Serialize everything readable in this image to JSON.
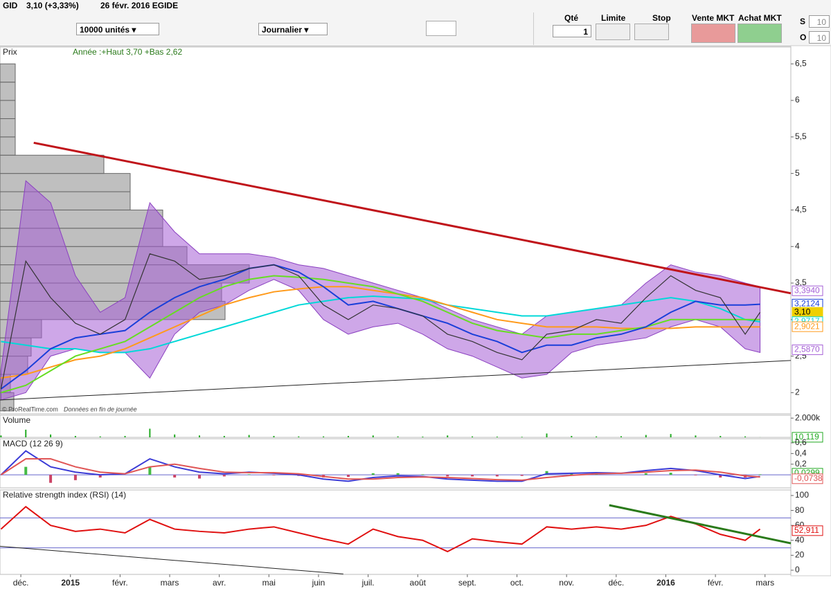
{
  "toolbar": {
    "symbol": "GID",
    "price": "3,10 (+3,33%)",
    "date": "26 févr. 2016 EGIDE",
    "units": "10000 unités",
    "period": "Journalier",
    "qty_label": "Qté",
    "qty": "1",
    "limit_label": "Limite",
    "stop_label": "Stop",
    "sell_label": "Vente MKT",
    "buy_label": "Achat MKT",
    "s_label": "S",
    "s_value": "10",
    "o_label": "O",
    "o_value": "10"
  },
  "x_axis": {
    "xlim": [
      -0.42,
      15.52
    ],
    "xticks": [
      {
        "value": 0,
        "label": "déc."
      },
      {
        "value": 1,
        "label": "2015"
      },
      {
        "value": 2,
        "label": "févr."
      },
      {
        "value": 3,
        "label": "mars"
      },
      {
        "value": 4,
        "label": "avr."
      },
      {
        "value": 5,
        "label": "mai"
      },
      {
        "value": 6,
        "label": "juin"
      },
      {
        "value": 7,
        "label": "juil."
      },
      {
        "value": 8,
        "label": "août"
      },
      {
        "value": 9,
        "label": "sept."
      },
      {
        "value": 10,
        "label": "oct."
      },
      {
        "value": 11,
        "label": "nov."
      },
      {
        "value": 12,
        "label": "déc."
      },
      {
        "value": 13,
        "label": "2016"
      },
      {
        "value": 14,
        "label": "févr."
      },
      {
        "value": 15,
        "label": "mars"
      }
    ],
    "x": [
      -0.4,
      0.1,
      0.6,
      1.1,
      1.6,
      2.1,
      2.6,
      3.1,
      3.6,
      4.1,
      4.6,
      5.1,
      5.6,
      6.1,
      6.6,
      7.1,
      7.6,
      8.1,
      8.6,
      9.1,
      9.6,
      10.1,
      10.6,
      11.1,
      11.6,
      12.1,
      12.6,
      13.1,
      13.6,
      14.1,
      14.6,
      14.9
    ]
  },
  "chart_data": [
    {
      "type": "line",
      "title": "Prix",
      "annotation": "Année :+Haut 3,70 +Bas 2,62",
      "credit": "© ProRealTime.com",
      "credit_note": "Données en fin de journée",
      "ylim": [
        1.71,
        6.73
      ],
      "yticks": [
        2,
        {
          "value": 2.5,
          "label": "2,5"
        },
        3,
        {
          "value": 3.5,
          "label": "3,5"
        },
        4,
        {
          "value": 4.5,
          "label": "4,5"
        },
        5,
        {
          "value": 5.5,
          "label": "5,5"
        },
        6,
        {
          "value": 6.5,
          "label": "6,5"
        }
      ],
      "band": {
        "color": "#a55fd6",
        "upper": [
          2.3,
          4.9,
          4.6,
          3.6,
          3.1,
          3.3,
          4.6,
          4.2,
          3.9,
          3.9,
          3.9,
          3.85,
          3.75,
          3.7,
          3.6,
          3.5,
          3.4,
          3.3,
          3.15,
          3.0,
          2.9,
          2.8,
          3.05,
          3.1,
          3.15,
          3.2,
          3.5,
          3.75,
          3.65,
          3.6,
          3.5,
          3.45
        ],
        "lower": [
          1.9,
          2.0,
          2.5,
          2.6,
          2.55,
          2.55,
          2.2,
          2.8,
          3.1,
          3.2,
          3.4,
          3.55,
          3.4,
          3.0,
          2.8,
          2.9,
          2.95,
          2.8,
          2.6,
          2.5,
          2.35,
          2.2,
          2.25,
          2.55,
          2.65,
          2.7,
          2.75,
          2.9,
          3.0,
          2.9,
          2.6,
          2.55
        ]
      },
      "volume_profile": {
        "color": "#a9a9a9",
        "bins": [
          1.75,
          2.0,
          2.25,
          2.5,
          2.75,
          3.0,
          3.25,
          3.5,
          3.75,
          4.0,
          4.25,
          4.5,
          4.75,
          5.0,
          5.25,
          5.5,
          5.75,
          6.0,
          6.25,
          6.5
        ],
        "values": [
          20,
          15,
          40,
          45,
          60,
          325,
          320,
          360,
          270,
          235,
          235,
          188,
          188,
          150,
          22,
          22,
          22,
          22,
          22
        ]
      },
      "series": [
        {
          "color": "#00d8d8",
          "values": [
            2.7,
            2.65,
            2.6,
            2.6,
            2.55,
            2.55,
            2.6,
            2.7,
            2.8,
            2.9,
            3.0,
            3.1,
            3.2,
            3.25,
            3.3,
            3.32,
            3.3,
            3.28,
            3.2,
            3.15,
            3.1,
            3.05,
            3.05,
            3.1,
            3.15,
            3.2,
            3.25,
            3.3,
            3.25,
            3.15,
            3.0,
            2.97
          ]
        },
        {
          "color": "#ff9a1a",
          "values": [
            2.2,
            2.25,
            2.35,
            2.45,
            2.5,
            2.6,
            2.75,
            2.9,
            3.05,
            3.2,
            3.3,
            3.38,
            3.42,
            3.45,
            3.45,
            3.4,
            3.35,
            3.3,
            3.2,
            3.1,
            3.0,
            2.95,
            2.9,
            2.9,
            2.9,
            2.88,
            2.88,
            2.88,
            2.9,
            2.9,
            2.9,
            2.9
          ]
        },
        {
          "color": "#66dd22",
          "values": [
            2.0,
            2.1,
            2.3,
            2.5,
            2.6,
            2.7,
            2.9,
            3.1,
            3.3,
            3.45,
            3.55,
            3.6,
            3.58,
            3.55,
            3.5,
            3.45,
            3.35,
            3.25,
            3.1,
            2.95,
            2.85,
            2.8,
            2.75,
            2.8,
            2.8,
            2.85,
            2.9,
            3.0,
            3.0,
            3.0,
            3.0,
            3.0
          ]
        },
        {
          "color": "#1a3fd9",
          "values": [
            2.05,
            2.3,
            2.6,
            2.75,
            2.8,
            2.85,
            3.1,
            3.3,
            3.45,
            3.55,
            3.7,
            3.75,
            3.65,
            3.45,
            3.2,
            3.25,
            3.15,
            3.05,
            2.95,
            2.8,
            2.7,
            2.55,
            2.65,
            2.65,
            2.75,
            2.8,
            2.9,
            3.1,
            3.25,
            3.2,
            3.2,
            3.21
          ]
        },
        {
          "color": "#333333",
          "values": [
            2.05,
            3.8,
            3.3,
            2.95,
            2.8,
            3.0,
            3.9,
            3.8,
            3.55,
            3.6,
            3.7,
            3.75,
            3.6,
            3.2,
            3.0,
            3.2,
            3.15,
            3.05,
            2.8,
            2.7,
            2.55,
            2.45,
            2.8,
            2.85,
            3.0,
            2.95,
            3.3,
            3.6,
            3.4,
            3.3,
            2.8,
            3.1
          ]
        }
      ],
      "trendlines": [
        {
          "color": "#c0141a",
          "x": [
            0.26,
            15.52
          ],
          "values": [
            5.42,
            3.36
          ]
        },
        {
          "color": "#222222",
          "x": [
            -0.42,
            15.52
          ],
          "values": [
            1.9,
            2.44
          ]
        }
      ],
      "badges": [
        {
          "value": 3.394,
          "label": "3,3940",
          "color": "#a55fd6"
        },
        {
          "value": 3.2124,
          "label": "3,2124",
          "color": "#1a3fd9"
        },
        {
          "value": 3.1,
          "label": "3,10",
          "color": "#f0d000"
        },
        {
          "value": 2.9717,
          "label": "2,9717",
          "color": "#00d8d8"
        },
        {
          "value": 2.9021,
          "label": "2,9021",
          "color": "#ff9a1a"
        },
        {
          "value": 2.587,
          "label": "2,5870",
          "color": "#a55fd6"
        }
      ]
    },
    {
      "type": "bar",
      "title": "Volume",
      "color": "#22aa22",
      "ylim": [
        0,
        2300000
      ],
      "yticks": [
        {
          "value": 2000000,
          "label": "2.000k"
        }
      ],
      "values": [
        200000,
        800000,
        300000,
        150000,
        100000,
        150000,
        900000,
        300000,
        200000,
        150000,
        250000,
        150000,
        100000,
        100000,
        150000,
        200000,
        100000,
        80000,
        200000,
        100000,
        80000,
        60000,
        400000,
        150000,
        100000,
        120000,
        250000,
        350000,
        200000,
        150000,
        100000,
        10119
      ],
      "badges": [
        {
          "value": 10119,
          "label": "10 119",
          "color": "#22aa22"
        }
      ]
    },
    {
      "type": "macd",
      "title": "MACD (12 26 9)",
      "ylim": [
        -0.245,
        0.677
      ],
      "yticks": [
        {
          "value": 0.2,
          "label": "0,2"
        },
        {
          "value": 0.4,
          "label": "0,4"
        },
        {
          "value": 0.6,
          "label": "0,6"
        }
      ],
      "series": [
        {
          "color": "#3b3bd6",
          "values": [
            0.0,
            0.45,
            0.15,
            0.05,
            0.0,
            0.02,
            0.3,
            0.15,
            0.05,
            0.02,
            0.05,
            0.03,
            0.0,
            -0.08,
            -0.12,
            -0.05,
            -0.02,
            -0.03,
            -0.08,
            -0.1,
            -0.12,
            -0.12,
            0.02,
            0.03,
            0.04,
            0.03,
            0.08,
            0.12,
            0.08,
            0.0,
            -0.07,
            -0.03
          ]
        },
        {
          "color": "#e05555",
          "values": [
            0.0,
            0.3,
            0.3,
            0.15,
            0.05,
            0.02,
            0.15,
            0.2,
            0.12,
            0.05,
            0.04,
            0.04,
            0.02,
            -0.03,
            -0.08,
            -0.08,
            -0.05,
            -0.04,
            -0.05,
            -0.07,
            -0.09,
            -0.1,
            -0.05,
            -0.01,
            0.02,
            0.03,
            0.05,
            0.08,
            0.09,
            0.05,
            -0.02,
            -0.04
          ]
        }
      ],
      "badges": [
        {
          "value": 0.0299,
          "label": "0,0299",
          "color": "#22aa22"
        },
        {
          "value": -0.0738,
          "label": "-0,0738",
          "color": "#e05555"
        }
      ]
    },
    {
      "type": "rsi",
      "title": "Relative strength index (RSI) (14)",
      "ylim": [
        -5.6,
        107.4
      ],
      "yticks": [
        0,
        20,
        40,
        60,
        80,
        100
      ],
      "levels": [
        30,
        70
      ],
      "series": [
        {
          "color": "#e01010",
          "values": [
            55,
            85,
            60,
            52,
            55,
            50,
            68,
            55,
            52,
            50,
            55,
            58,
            50,
            42,
            35,
            55,
            45,
            40,
            25,
            42,
            38,
            35,
            58,
            55,
            58,
            55,
            60,
            72,
            62,
            48,
            40,
            55
          ]
        }
      ],
      "trendlines": [
        {
          "color": "#2a7a1a",
          "x": [
            11.86,
            15.52
          ],
          "values": [
            87,
            36
          ]
        },
        {
          "color": "#222222",
          "x": [
            -0.42,
            6.5
          ],
          "values": [
            32,
            -5
          ]
        }
      ],
      "badges": [
        {
          "value": 52.911,
          "label": "52,911",
          "color": "#e01010"
        }
      ]
    }
  ]
}
